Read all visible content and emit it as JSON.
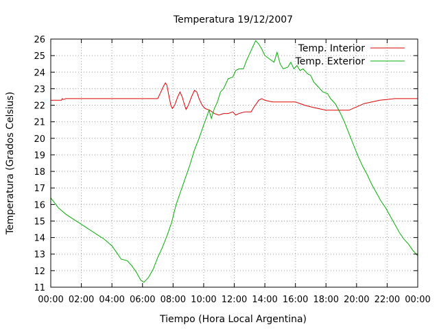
{
  "chart_data": {
    "type": "line",
    "title": "Temperatura 19/12/2007",
    "xlabel": "Tiempo (Hora Local Argentina)",
    "ylabel": "Temperatura (Grados Celsius)",
    "xlim": [
      0,
      24
    ],
    "ylim": [
      11,
      26
    ],
    "x_ticks": [
      "00:00",
      "02:00",
      "04:00",
      "06:00",
      "08:00",
      "10:00",
      "12:00",
      "14:00",
      "16:00",
      "18:00",
      "20:00",
      "22:00",
      "00:00"
    ],
    "y_ticks": [
      11,
      12,
      13,
      14,
      15,
      16,
      17,
      18,
      19,
      20,
      21,
      22,
      23,
      24,
      25,
      26
    ],
    "grid": true,
    "legend_position": "top-right",
    "series": [
      {
        "name": "Temp. Interior",
        "color": "#e00000",
        "points": [
          [
            0.0,
            22.3
          ],
          [
            0.7,
            22.3
          ],
          [
            0.75,
            22.4
          ],
          [
            0.8,
            22.35
          ],
          [
            1.0,
            22.4
          ],
          [
            2.0,
            22.4
          ],
          [
            4.0,
            22.4
          ],
          [
            6.0,
            22.4
          ],
          [
            7.0,
            22.4
          ],
          [
            7.2,
            22.8
          ],
          [
            7.4,
            23.2
          ],
          [
            7.5,
            23.35
          ],
          [
            7.6,
            23.2
          ],
          [
            7.7,
            22.7
          ],
          [
            7.85,
            22.0
          ],
          [
            7.95,
            21.8
          ],
          [
            8.1,
            22.0
          ],
          [
            8.3,
            22.5
          ],
          [
            8.45,
            22.8
          ],
          [
            8.6,
            22.5
          ],
          [
            8.75,
            22.0
          ],
          [
            8.85,
            21.75
          ],
          [
            9.0,
            22.0
          ],
          [
            9.2,
            22.5
          ],
          [
            9.4,
            22.9
          ],
          [
            9.55,
            22.8
          ],
          [
            9.7,
            22.4
          ],
          [
            9.9,
            22.0
          ],
          [
            10.1,
            21.8
          ],
          [
            10.4,
            21.7
          ],
          [
            10.7,
            21.5
          ],
          [
            11.0,
            21.4
          ],
          [
            11.3,
            21.5
          ],
          [
            11.6,
            21.5
          ],
          [
            11.9,
            21.6
          ],
          [
            12.1,
            21.4
          ],
          [
            12.3,
            21.5
          ],
          [
            12.7,
            21.6
          ],
          [
            13.1,
            21.6
          ],
          [
            13.3,
            21.9
          ],
          [
            13.6,
            22.3
          ],
          [
            13.8,
            22.4
          ],
          [
            14.0,
            22.3
          ],
          [
            14.5,
            22.2
          ],
          [
            15.0,
            22.2
          ],
          [
            15.5,
            22.2
          ],
          [
            16.0,
            22.2
          ],
          [
            16.3,
            22.1
          ],
          [
            16.6,
            22.0
          ],
          [
            17.0,
            21.9
          ],
          [
            17.5,
            21.8
          ],
          [
            18.0,
            21.7
          ],
          [
            18.5,
            21.7
          ],
          [
            19.0,
            21.7
          ],
          [
            19.5,
            21.7
          ],
          [
            20.0,
            21.9
          ],
          [
            20.5,
            22.1
          ],
          [
            21.0,
            22.2
          ],
          [
            21.5,
            22.3
          ],
          [
            22.0,
            22.35
          ],
          [
            22.5,
            22.4
          ],
          [
            23.0,
            22.4
          ],
          [
            24.0,
            22.4
          ]
        ]
      },
      {
        "name": "Temp. Exterior",
        "color": "#00b000",
        "points": [
          [
            0.0,
            16.4
          ],
          [
            0.5,
            15.8
          ],
          [
            1.0,
            15.4
          ],
          [
            1.5,
            15.1
          ],
          [
            2.0,
            14.8
          ],
          [
            2.5,
            14.5
          ],
          [
            3.0,
            14.2
          ],
          [
            3.5,
            13.9
          ],
          [
            4.0,
            13.5
          ],
          [
            4.3,
            13.1
          ],
          [
            4.6,
            12.7
          ],
          [
            5.0,
            12.6
          ],
          [
            5.3,
            12.3
          ],
          [
            5.6,
            11.9
          ],
          [
            5.9,
            11.4
          ],
          [
            6.1,
            11.3
          ],
          [
            6.4,
            11.6
          ],
          [
            6.7,
            12.1
          ],
          [
            7.0,
            12.8
          ],
          [
            7.3,
            13.4
          ],
          [
            7.6,
            14.1
          ],
          [
            7.9,
            14.9
          ],
          [
            8.2,
            16.0
          ],
          [
            8.5,
            16.8
          ],
          [
            8.8,
            17.6
          ],
          [
            9.1,
            18.4
          ],
          [
            9.4,
            19.3
          ],
          [
            9.7,
            20.0
          ],
          [
            10.0,
            20.8
          ],
          [
            10.2,
            21.3
          ],
          [
            10.35,
            21.7
          ],
          [
            10.5,
            21.2
          ],
          [
            10.7,
            21.8
          ],
          [
            10.9,
            22.2
          ],
          [
            11.1,
            22.8
          ],
          [
            11.3,
            23.0
          ],
          [
            11.6,
            23.6
          ],
          [
            11.9,
            23.7
          ],
          [
            12.1,
            24.1
          ],
          [
            12.3,
            24.2
          ],
          [
            12.6,
            24.2
          ],
          [
            12.8,
            24.7
          ],
          [
            13.0,
            25.1
          ],
          [
            13.2,
            25.5
          ],
          [
            13.4,
            25.9
          ],
          [
            13.6,
            25.7
          ],
          [
            13.8,
            25.4
          ],
          [
            14.0,
            25.0
          ],
          [
            14.3,
            24.8
          ],
          [
            14.6,
            24.6
          ],
          [
            14.8,
            25.2
          ],
          [
            15.0,
            24.5
          ],
          [
            15.2,
            24.2
          ],
          [
            15.5,
            24.3
          ],
          [
            15.7,
            24.6
          ],
          [
            15.9,
            24.2
          ],
          [
            16.1,
            24.4
          ],
          [
            16.3,
            24.1
          ],
          [
            16.5,
            24.2
          ],
          [
            16.8,
            23.9
          ],
          [
            17.0,
            23.8
          ],
          [
            17.2,
            23.4
          ],
          [
            17.5,
            23.1
          ],
          [
            17.8,
            22.8
          ],
          [
            18.1,
            22.7
          ],
          [
            18.3,
            22.4
          ],
          [
            18.6,
            22.1
          ],
          [
            18.9,
            21.6
          ],
          [
            19.2,
            21.0
          ],
          [
            19.5,
            20.3
          ],
          [
            19.8,
            19.6
          ],
          [
            20.1,
            18.9
          ],
          [
            20.4,
            18.3
          ],
          [
            20.7,
            17.8
          ],
          [
            21.0,
            17.2
          ],
          [
            21.3,
            16.7
          ],
          [
            21.6,
            16.2
          ],
          [
            21.9,
            15.8
          ],
          [
            22.2,
            15.3
          ],
          [
            22.5,
            14.8
          ],
          [
            22.8,
            14.3
          ],
          [
            23.1,
            13.9
          ],
          [
            23.4,
            13.6
          ],
          [
            23.7,
            13.2
          ],
          [
            24.0,
            12.9
          ]
        ]
      }
    ]
  }
}
